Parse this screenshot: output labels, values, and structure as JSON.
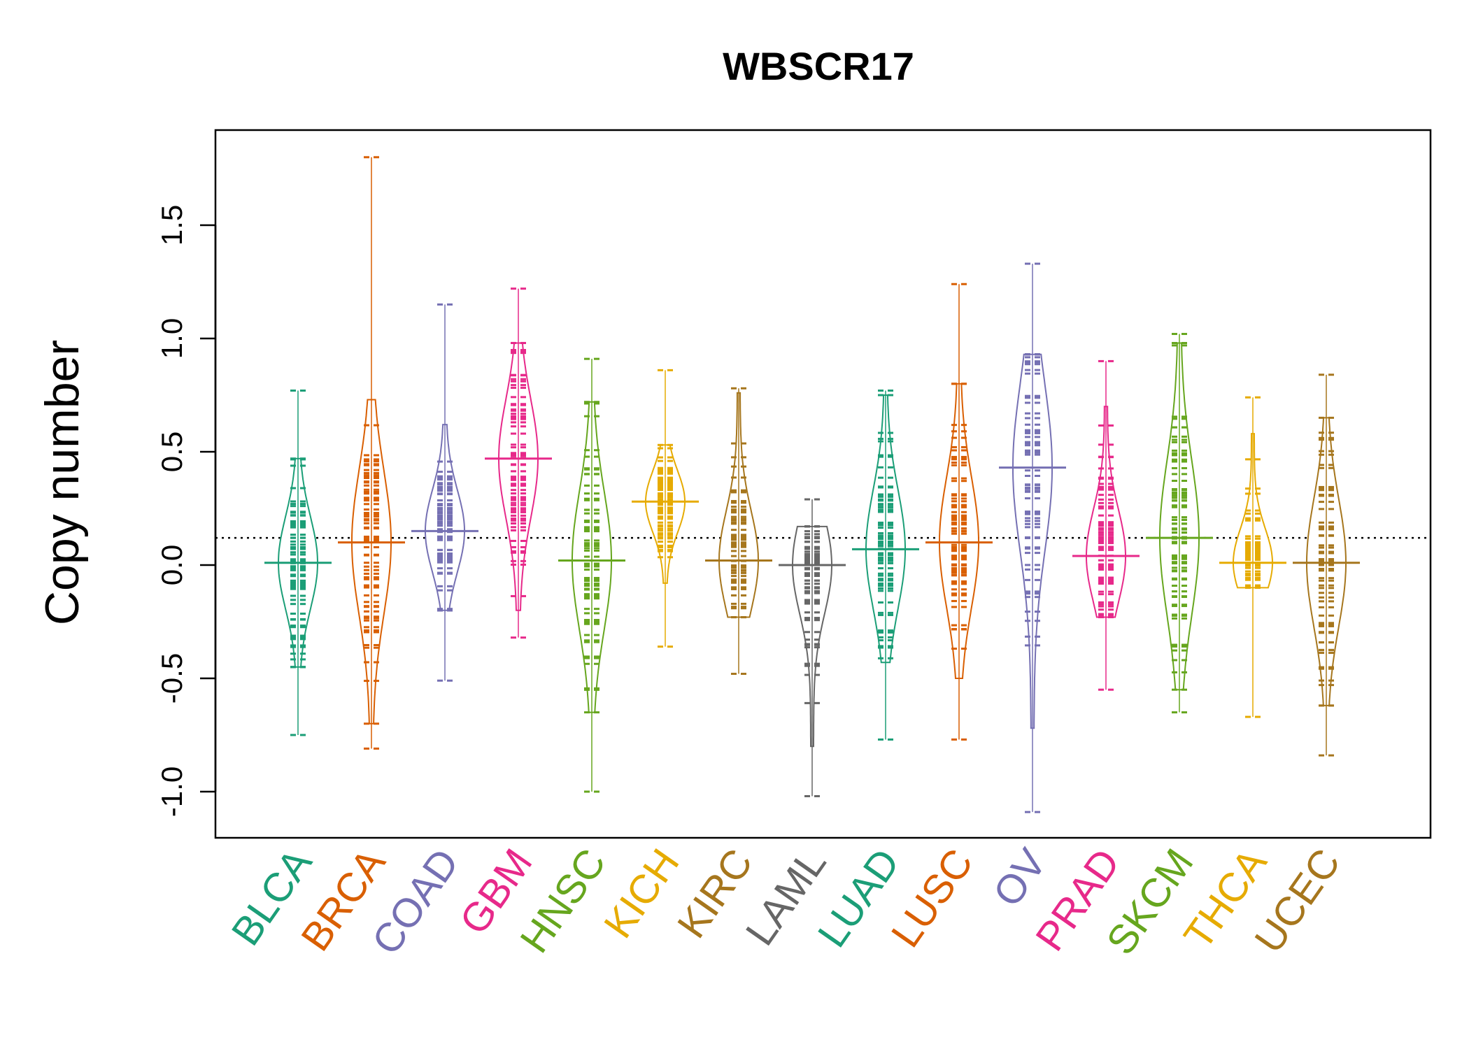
{
  "chart_data": {
    "type": "beanplot",
    "title": "WBSCR17",
    "xlabel": "",
    "ylabel": "Copy number",
    "ylim": [
      -1.2,
      1.9
    ],
    "yticks": [
      "-1.0",
      "-0.5",
      "0.0",
      "0.5",
      "1.0",
      "1.5"
    ],
    "yticks_values": [
      -1.0,
      -0.5,
      0.0,
      0.5,
      1.0,
      1.5
    ],
    "reference_line": 0.12,
    "grid": false,
    "legend": "none",
    "categories": [
      "BLCA",
      "BRCA",
      "COAD",
      "GBM",
      "HNSC",
      "KICH",
      "KIRC",
      "LAML",
      "LUAD",
      "LUSC",
      "OV",
      "PRAD",
      "SKCM",
      "THCA",
      "UCEC"
    ],
    "colors": [
      "#1B9E77",
      "#D95F02",
      "#7570B3",
      "#E7298A",
      "#66A61E",
      "#E6AB02",
      "#A6761D",
      "#666666",
      "#1B9E77",
      "#D95F02",
      "#7570B3",
      "#E7298A",
      "#66A61E",
      "#E6AB02",
      "#A6761D"
    ],
    "series": [
      {
        "category": "BLCA",
        "mean": 0.01,
        "min": -0.75,
        "max": 0.77,
        "q_low": -0.45,
        "q_high": 0.47
      },
      {
        "category": "BRCA",
        "mean": 0.1,
        "min": -0.81,
        "max": 1.8,
        "q_low": -0.7,
        "q_high": 0.73
      },
      {
        "category": "COAD",
        "mean": 0.15,
        "min": -0.51,
        "max": 1.15,
        "q_low": -0.2,
        "q_high": 0.62
      },
      {
        "category": "GBM",
        "mean": 0.47,
        "min": -0.32,
        "max": 1.22,
        "q_low": -0.2,
        "q_high": 0.98
      },
      {
        "category": "HNSC",
        "mean": 0.02,
        "min": -1.0,
        "max": 0.91,
        "q_low": -0.65,
        "q_high": 0.72
      },
      {
        "category": "KICH",
        "mean": 0.28,
        "min": -0.36,
        "max": 0.86,
        "q_low": -0.08,
        "q_high": 0.53
      },
      {
        "category": "KIRC",
        "mean": 0.02,
        "min": -0.48,
        "max": 0.78,
        "q_low": -0.23,
        "q_high": 0.76
      },
      {
        "category": "LAML",
        "mean": 0.0,
        "min": -1.02,
        "max": 0.29,
        "q_low": -0.8,
        "q_high": 0.17
      },
      {
        "category": "LUAD",
        "mean": 0.07,
        "min": -0.77,
        "max": 0.77,
        "q_low": -0.43,
        "q_high": 0.75
      },
      {
        "category": "LUSC",
        "mean": 0.1,
        "min": -0.77,
        "max": 1.24,
        "q_low": -0.5,
        "q_high": 0.8
      },
      {
        "category": "OV",
        "mean": 0.43,
        "min": -1.09,
        "max": 1.33,
        "q_low": -0.72,
        "q_high": 0.93
      },
      {
        "category": "PRAD",
        "mean": 0.04,
        "min": -0.55,
        "max": 0.9,
        "q_low": -0.23,
        "q_high": 0.7
      },
      {
        "category": "SKCM",
        "mean": 0.12,
        "min": -0.65,
        "max": 1.02,
        "q_low": -0.55,
        "q_high": 0.98
      },
      {
        "category": "THCA",
        "mean": 0.01,
        "min": -0.67,
        "max": 0.74,
        "q_low": -0.1,
        "q_high": 0.58
      },
      {
        "category": "UCEC",
        "mean": 0.01,
        "min": -0.84,
        "max": 0.84,
        "q_low": -0.62,
        "q_high": 0.65
      }
    ]
  }
}
